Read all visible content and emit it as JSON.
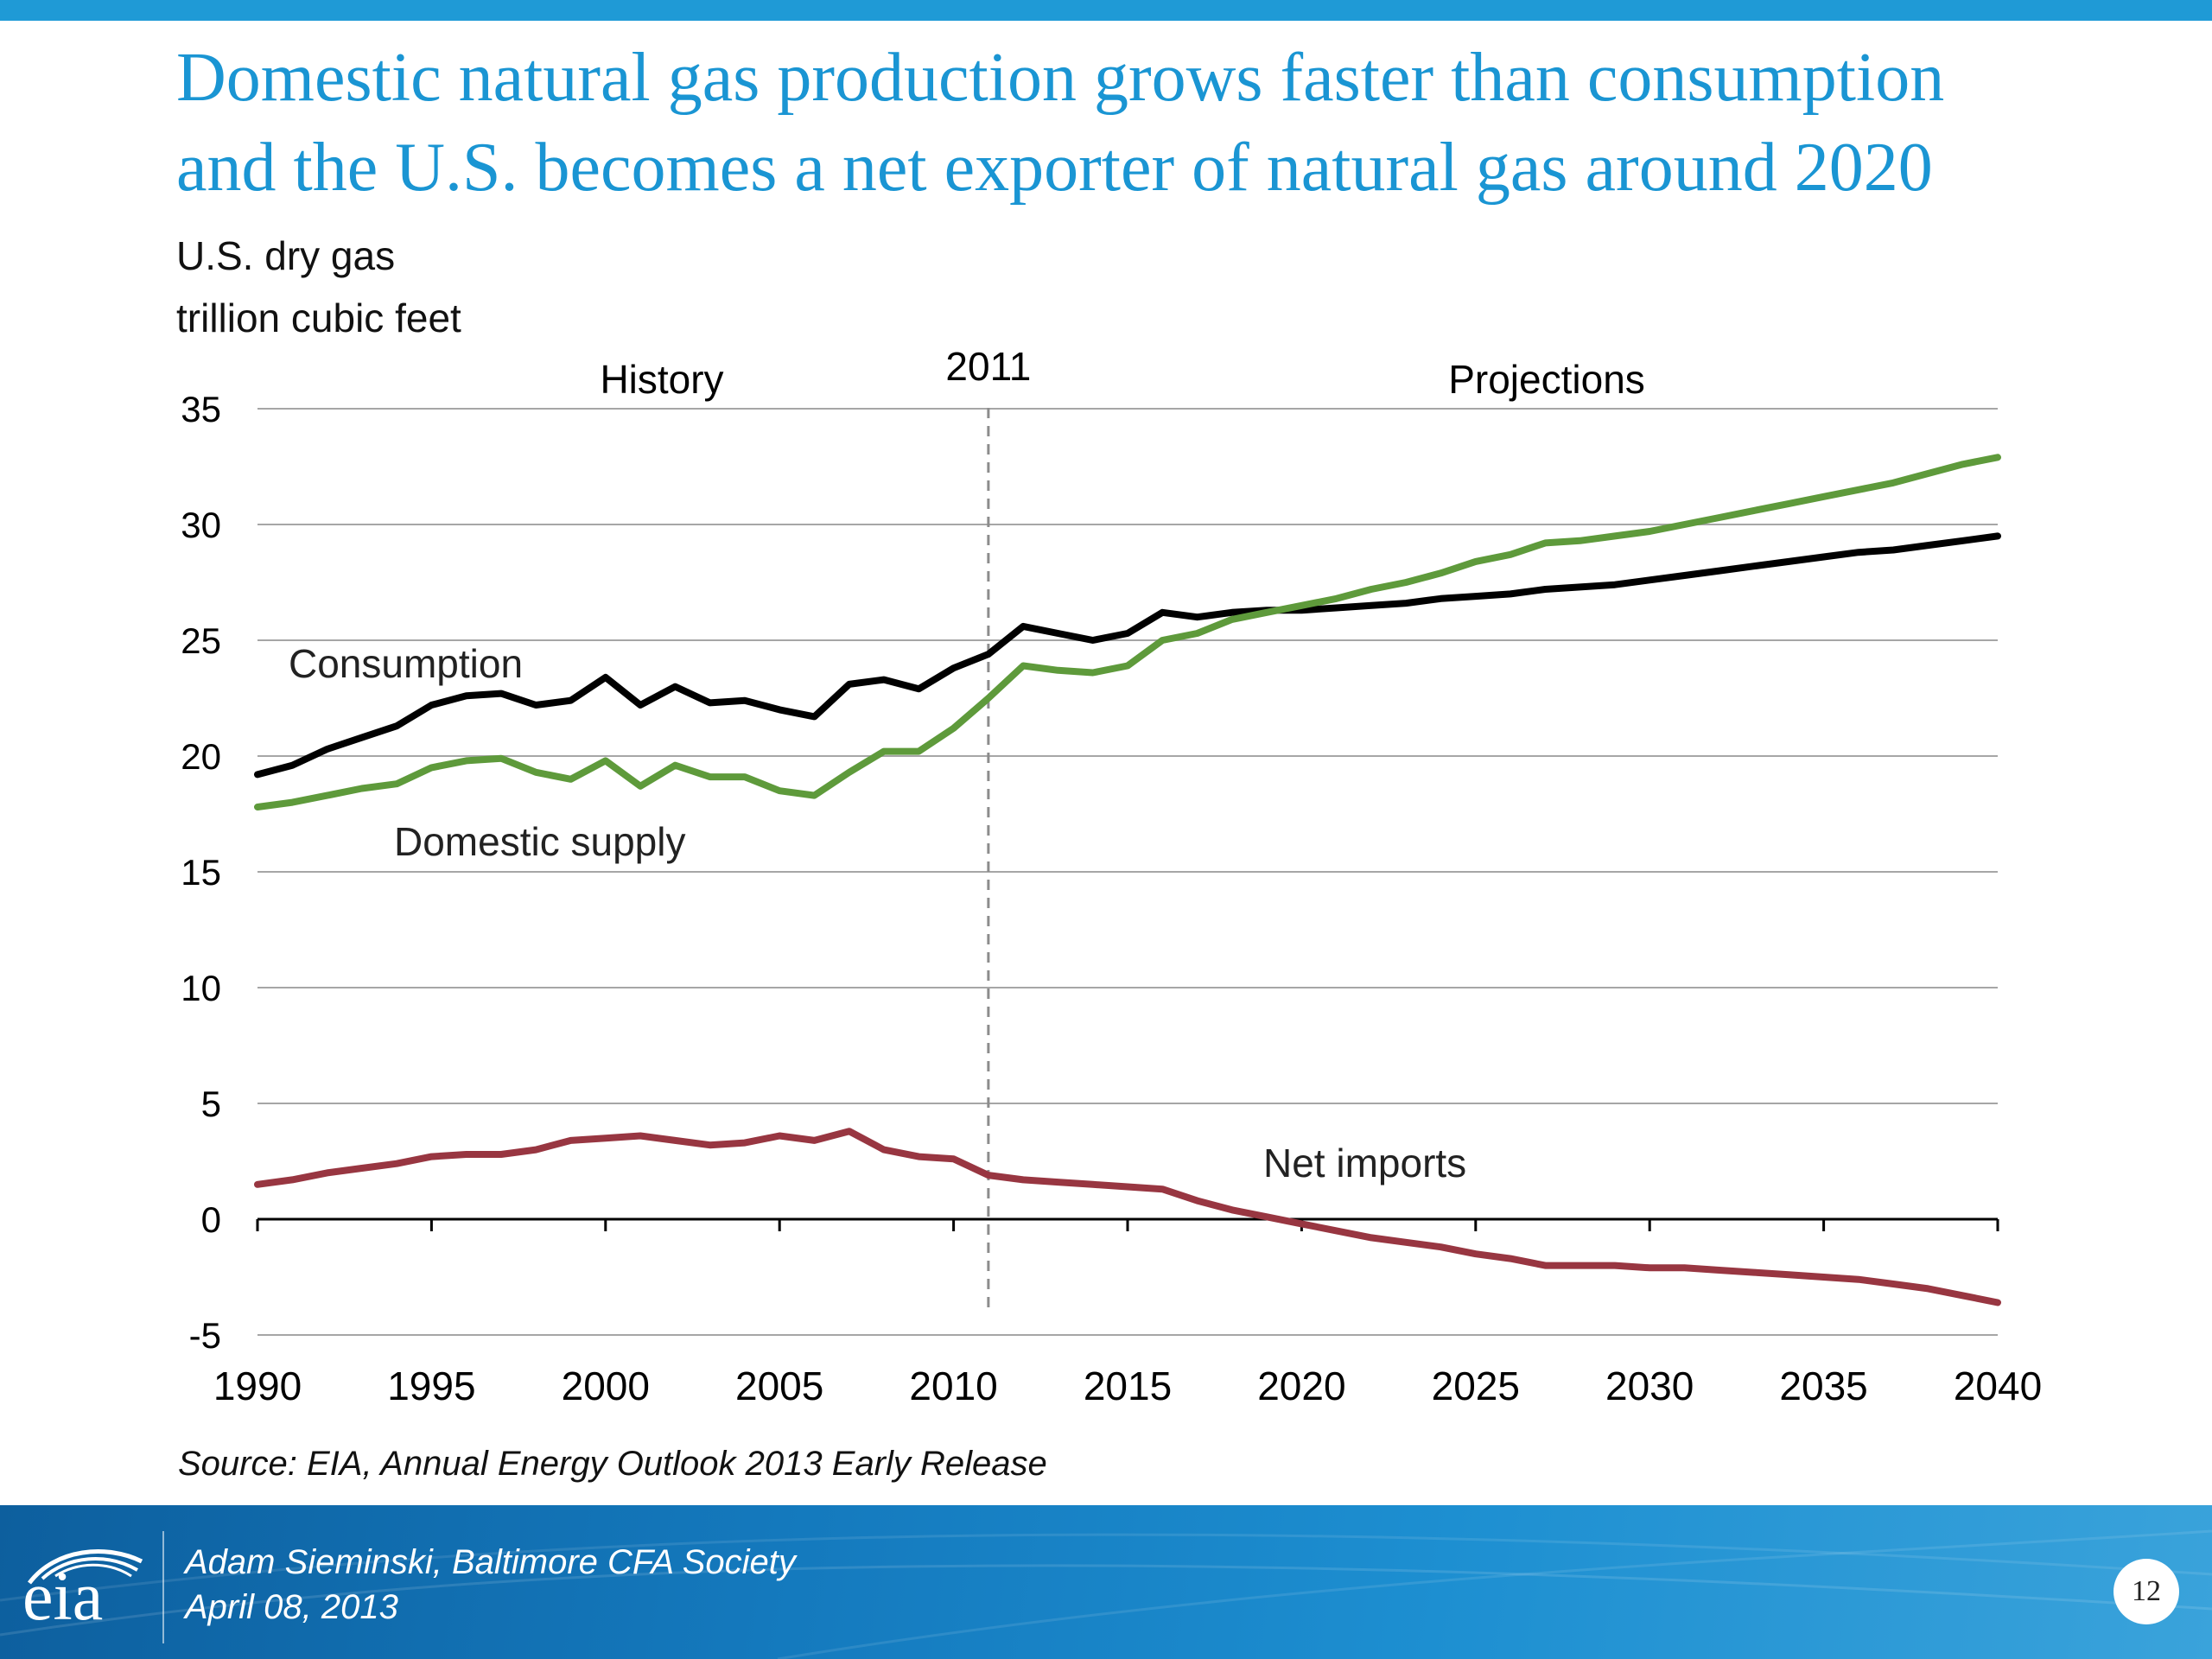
{
  "slide": {
    "title_line1": "Domestic natural gas production grows faster than consumption",
    "title_line2": "and the U.S. becomes a net exporter of natural gas around 2020",
    "unit_line1": "U.S. dry gas",
    "unit_line2": "trillion cubic feet",
    "source": "Source:  EIA, Annual Energy Outlook 2013 Early Release",
    "presenter_line1": "Adam Sieminski, Baltimore CFA Society",
    "presenter_line2": "April 08, 2013",
    "logo_text": "eia",
    "page_number": "12"
  },
  "chart_data": {
    "type": "line",
    "title": "",
    "xlabel": "",
    "ylabel": "",
    "xlim": [
      1990,
      2040
    ],
    "ylim": [
      -5,
      35
    ],
    "x_ticks": [
      1990,
      1995,
      2000,
      2005,
      2010,
      2015,
      2020,
      2025,
      2030,
      2035,
      2040
    ],
    "y_ticks": [
      -5,
      0,
      5,
      10,
      15,
      20,
      25,
      30,
      35
    ],
    "grid": true,
    "divider": {
      "x": 2011,
      "label": "2011"
    },
    "region_labels": {
      "history": "History",
      "projections": "Projections"
    },
    "x": [
      1990,
      1991,
      1992,
      1993,
      1994,
      1995,
      1996,
      1997,
      1998,
      1999,
      2000,
      2001,
      2002,
      2003,
      2004,
      2005,
      2006,
      2007,
      2008,
      2009,
      2010,
      2011,
      2012,
      2013,
      2014,
      2015,
      2016,
      2017,
      2018,
      2019,
      2020,
      2021,
      2022,
      2023,
      2024,
      2025,
      2026,
      2027,
      2028,
      2029,
      2030,
      2031,
      2032,
      2033,
      2034,
      2035,
      2036,
      2037,
      2038,
      2039,
      2040
    ],
    "series": [
      {
        "name": "Consumption",
        "color": "#000000",
        "values": [
          19.2,
          19.6,
          20.3,
          20.8,
          21.3,
          22.2,
          22.6,
          22.7,
          22.2,
          22.4,
          23.4,
          22.2,
          23.0,
          22.3,
          22.4,
          22.0,
          21.7,
          23.1,
          23.3,
          22.9,
          23.8,
          24.4,
          25.6,
          25.3,
          25.0,
          25.3,
          26.2,
          26.0,
          26.2,
          26.3,
          26.3,
          26.4,
          26.5,
          26.6,
          26.8,
          26.9,
          27.0,
          27.2,
          27.3,
          27.4,
          27.6,
          27.8,
          28.0,
          28.2,
          28.4,
          28.6,
          28.8,
          28.9,
          29.1,
          29.3,
          29.5
        ]
      },
      {
        "name": "Domestic supply",
        "color": "#5e9a3b",
        "values": [
          17.8,
          18.0,
          18.3,
          18.6,
          18.8,
          19.5,
          19.8,
          19.9,
          19.3,
          19.0,
          19.8,
          18.7,
          19.6,
          19.1,
          19.1,
          18.5,
          18.3,
          19.3,
          20.2,
          20.2,
          21.2,
          22.5,
          23.9,
          23.7,
          23.6,
          23.9,
          25.0,
          25.3,
          25.9,
          26.2,
          26.5,
          26.8,
          27.2,
          27.5,
          27.9,
          28.4,
          28.7,
          29.2,
          29.3,
          29.5,
          29.7,
          30.0,
          30.3,
          30.6,
          30.9,
          31.2,
          31.5,
          31.8,
          32.2,
          32.6,
          32.9
        ]
      },
      {
        "name": "Net imports",
        "color": "#983641",
        "values": [
          1.5,
          1.7,
          2.0,
          2.2,
          2.4,
          2.7,
          2.8,
          2.8,
          3.0,
          3.4,
          3.5,
          3.6,
          3.4,
          3.2,
          3.3,
          3.6,
          3.4,
          3.8,
          3.0,
          2.7,
          2.6,
          1.9,
          1.7,
          1.6,
          1.5,
          1.4,
          1.3,
          0.8,
          0.4,
          0.1,
          -0.2,
          -0.5,
          -0.8,
          -1.0,
          -1.2,
          -1.5,
          -1.7,
          -2.0,
          -2.0,
          -2.0,
          -2.1,
          -2.1,
          -2.2,
          -2.3,
          -2.4,
          -2.5,
          -2.6,
          -2.8,
          -3.0,
          -3.3,
          -3.6
        ]
      }
    ],
    "series_labels": [
      {
        "series": "Consumption",
        "text": "Consumption"
      },
      {
        "series": "Domestic supply",
        "text": "Domestic supply"
      },
      {
        "series": "Net imports",
        "text": "Net imports"
      }
    ],
    "colors": {
      "grid": "#a6a6a6",
      "axis": "#000000",
      "divider": "#8c8c8c",
      "title": "#1a95d3"
    }
  }
}
